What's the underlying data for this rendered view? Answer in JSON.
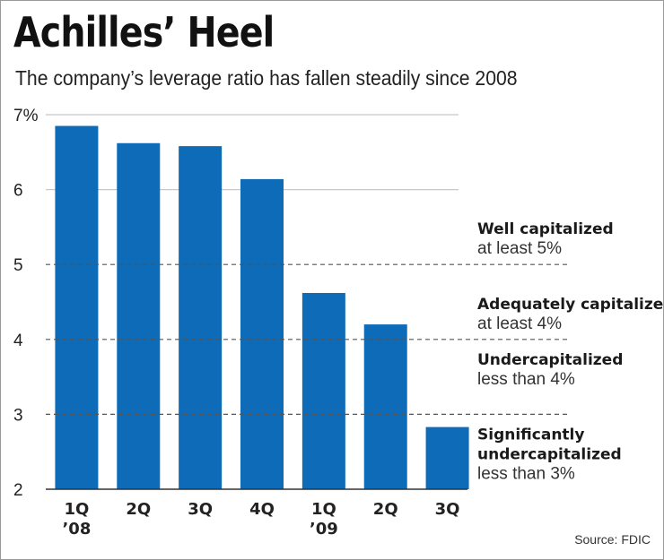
{
  "chart_data": {
    "type": "bar",
    "title": "Achilles’ Heel",
    "subtitle": "The company’s leverage ratio has fallen steadily since 2008",
    "source": "Source: FDIC",
    "categories": [
      [
        "1Q",
        "’08"
      ],
      [
        "2Q"
      ],
      [
        "3Q"
      ],
      [
        "4Q"
      ],
      [
        "1Q",
        "’09"
      ],
      [
        "2Q"
      ],
      [
        "3Q"
      ]
    ],
    "values": [
      6.85,
      6.62,
      6.58,
      6.14,
      4.62,
      4.2,
      2.83
    ],
    "ylim": [
      2,
      7
    ],
    "yticks": [
      {
        "value": 7,
        "label": "7%"
      },
      {
        "value": 6,
        "label": "6"
      },
      {
        "value": 5,
        "label": "5"
      },
      {
        "value": 4,
        "label": "4"
      },
      {
        "value": 3,
        "label": "3"
      },
      {
        "value": 2,
        "label": "2"
      }
    ],
    "solid_gridlines": [
      7,
      6
    ],
    "threshold_lines": [
      5,
      4,
      3
    ],
    "bar_color": "#0e6bb8",
    "annotations": [
      {
        "lines": [
          "Well capitalized",
          "at least 5%"
        ],
        "anchor": 5,
        "position": "above"
      },
      {
        "lines": [
          "Adequately capitalized",
          "at least 4%"
        ],
        "anchor": 4,
        "position": "above"
      },
      {
        "lines": [
          "Undercapitalized",
          "less than 4%"
        ],
        "anchor": 4,
        "position": "below"
      },
      {
        "lines": [
          "Significantly",
          "undercapitalized",
          "less than 3%"
        ],
        "anchor": 3,
        "position": "below"
      }
    ]
  }
}
